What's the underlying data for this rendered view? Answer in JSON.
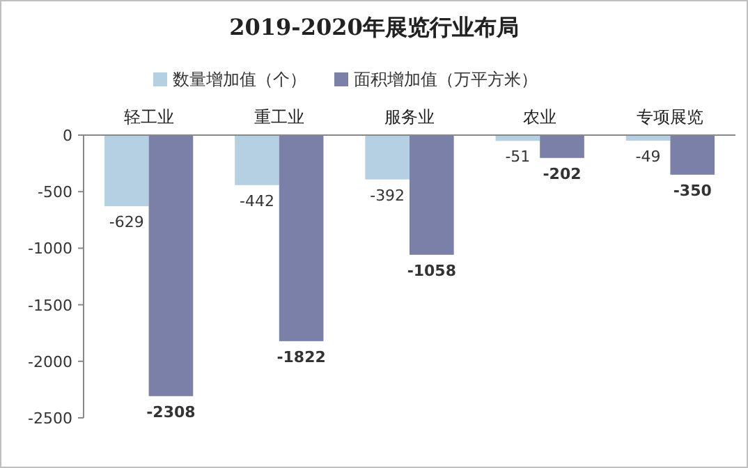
{
  "chart_data": {
    "type": "bar",
    "title": "2019-2020年展览行业布局",
    "categories": [
      "轻工业",
      "重工业",
      "服务业",
      "农业",
      "专项展览"
    ],
    "series": [
      {
        "name": "数量增加值（个）",
        "color": "#b5d0e2",
        "values": [
          -629,
          -442,
          -392,
          -51,
          -49
        ]
      },
      {
        "name": "面积增加值（万平方米）",
        "color": "#7a80a8",
        "values": [
          -2308,
          -1822,
          -1058,
          -202,
          -350
        ]
      }
    ],
    "ylim": [
      -2500,
      0
    ],
    "yticks": [
      -2500,
      -2000,
      -1500,
      -1000,
      -500,
      0
    ],
    "data_labels": true,
    "legend": "top",
    "grid": false
  }
}
